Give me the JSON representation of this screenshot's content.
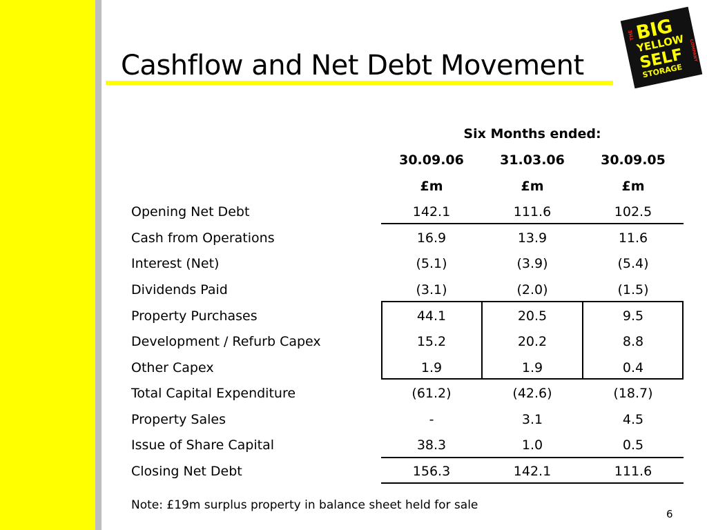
{
  "slide": {
    "title": "Cashflow and Net Debt Movement",
    "page_number": "6",
    "note": "Note: £19m surplus property in balance sheet held for sale"
  },
  "logo": {
    "line_the": "THE",
    "line_big": "BIG",
    "line_yellow": "YELLOW",
    "line_self": "SELF",
    "line_storage": "STORAGE",
    "line_company": "COMPANY",
    "colors": {
      "background": "#111111",
      "text": "#ffff00",
      "accent": "#e8201a"
    }
  },
  "colors": {
    "accent_yellow": "#ffff00",
    "band_gray": "#bdbdbd",
    "text": "#000000"
  },
  "table": {
    "period_header": "Six Months ended:",
    "columns": [
      {
        "date": "30.09.06",
        "unit": "£m"
      },
      {
        "date": "31.03.06",
        "unit": "£m"
      },
      {
        "date": "30.09.05",
        "unit": "£m"
      }
    ],
    "rows": [
      {
        "label": "Opening Net Debt",
        "values": [
          "142.1",
          "111.6",
          "102.5"
        ]
      },
      {
        "label": "Cash from Operations",
        "values": [
          "16.9",
          "13.9",
          "11.6"
        ]
      },
      {
        "label": "Interest (Net)",
        "values": [
          "(5.1)",
          "(3.9)",
          "(5.4)"
        ]
      },
      {
        "label": "Dividends Paid",
        "values": [
          "(3.1)",
          "(2.0)",
          "(1.5)"
        ]
      },
      {
        "label": "Property Purchases",
        "values": [
          "44.1",
          "20.5",
          "9.5"
        ]
      },
      {
        "label": "Development / Refurb Capex",
        "values": [
          "15.2",
          "20.2",
          "8.8"
        ]
      },
      {
        "label": "Other Capex",
        "values": [
          "1.9",
          "1.9",
          "0.4"
        ]
      },
      {
        "label": "Total Capital Expenditure",
        "values": [
          "(61.2)",
          "(42.6)",
          "(18.7)"
        ]
      },
      {
        "label": "Property Sales",
        "values": [
          "-",
          "3.1",
          "4.5"
        ]
      },
      {
        "label": "Issue of Share Capital",
        "values": [
          "38.3",
          "1.0",
          "0.5"
        ]
      },
      {
        "label": "Closing Net Debt",
        "values": [
          "156.3",
          "142.1",
          "111.6"
        ]
      }
    ]
  }
}
